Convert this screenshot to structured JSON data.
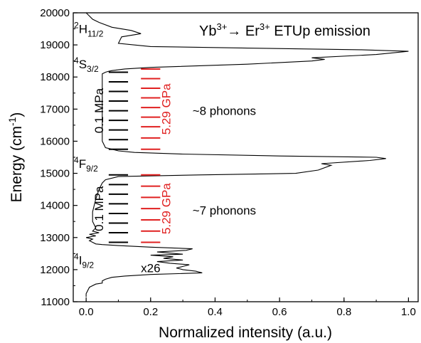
{
  "chart_data": {
    "type": "line",
    "title": "Yb³⁺→ Er³⁺ ETUp emission",
    "title_parts": {
      "yb": "Yb",
      "yb_sup": "3+",
      "arrow": "→ Er",
      "er_sup": "3+",
      "rest": " ETUp emission"
    },
    "xlabel": "Normalized intensity (a.u.)",
    "ylabel": "Energy (cm⁻¹)",
    "ylabel_parts": {
      "main": "Energy (cm",
      "sup": "-1",
      "close": ")"
    },
    "xlim": [
      -0.04,
      1.03
    ],
    "ylim": [
      11000,
      20000
    ],
    "x_ticks": [
      0.0,
      0.2,
      0.4,
      0.6,
      0.8,
      1.0
    ],
    "x_tick_labels": [
      "0.0",
      "0.2",
      "0.4",
      "0.6",
      "0.8",
      "1.0"
    ],
    "y_ticks": [
      11000,
      12000,
      13000,
      14000,
      15000,
      16000,
      17000,
      18000,
      19000,
      20000
    ],
    "y_tick_labels": [
      "11000",
      "12000",
      "13000",
      "14000",
      "15000",
      "16000",
      "17000",
      "18000",
      "19000",
      "20000"
    ],
    "grid": false,
    "series": [
      {
        "color": "#000000",
        "x": [
          0.0,
          0.0,
          0.01,
          0.03,
          0.05,
          0.05,
          0.06,
          0.08,
          0.12,
          0.2,
          0.3,
          0.36,
          0.34,
          0.3,
          0.28,
          0.3,
          0.32,
          0.26,
          0.22,
          0.3,
          0.24,
          0.27,
          0.2,
          0.3,
          0.22,
          0.31,
          0.33,
          0.2,
          0.1,
          0.05,
          0.03,
          0.02,
          0.01,
          0.02,
          0.0,
          0.03,
          0.01,
          0.04,
          0.02,
          0.03,
          0.02,
          0.02,
          0.03,
          0.04,
          0.05,
          0.06,
          0.1,
          0.35,
          0.65,
          0.72,
          0.76,
          0.73,
          0.88,
          0.93,
          0.9,
          0.6,
          0.3,
          0.15,
          0.1,
          0.08,
          0.06,
          0.05,
          0.05,
          0.05,
          0.05,
          0.05,
          0.05,
          0.05,
          0.05,
          0.06,
          0.07,
          0.08,
          0.12,
          0.2,
          0.5,
          0.7,
          0.74,
          0.7,
          0.9,
          1.0,
          0.85,
          0.5,
          0.2,
          0.1,
          0.11,
          0.17,
          0.14,
          0.08,
          0.04,
          0.02,
          0.01,
          0.0,
          0.0
        ],
        "y": [
          11150,
          11250,
          11450,
          11550,
          11580,
          11650,
          11700,
          11760,
          11800,
          11850,
          11880,
          11900,
          11950,
          12000,
          12050,
          12100,
          12150,
          12200,
          12250,
          12300,
          12350,
          12400,
          12450,
          12480,
          12550,
          12600,
          12650,
          12700,
          12750,
          12780,
          12800,
          12850,
          12900,
          12950,
          13000,
          13050,
          13100,
          13150,
          13200,
          13300,
          13500,
          13800,
          14200,
          14500,
          14700,
          14800,
          14900,
          14950,
          15000,
          15100,
          15250,
          15300,
          15400,
          15460,
          15500,
          15540,
          15600,
          15650,
          15700,
          15750,
          15800,
          16000,
          16500,
          17000,
          17500,
          17800,
          18000,
          18050,
          18100,
          18150,
          18180,
          18200,
          18250,
          18300,
          18400,
          18500,
          18550,
          18600,
          18700,
          18800,
          18850,
          18900,
          18950,
          19050,
          19250,
          19350,
          19450,
          19550,
          19700,
          19800,
          19900,
          20000,
          20100
        ]
      }
    ],
    "level_labels": [
      {
        "term": "H",
        "pre": "2",
        "sub": "11/2",
        "energy": 19500
      },
      {
        "term": "S",
        "pre": "4",
        "sub": "3/2",
        "energy": 18400
      },
      {
        "term": "F",
        "pre": "4",
        "sub": "9/2",
        "energy": 15300
      },
      {
        "term": "I",
        "pre": "4",
        "sub": "9/2",
        "energy": 12300
      }
    ],
    "phonon_ladders": [
      {
        "color": "#000000",
        "label": "0.1 MPa",
        "x_range": [
          0.07,
          0.13
        ],
        "energies": [
          18150,
          17850,
          17550,
          17250,
          16950,
          16650,
          16350,
          16050,
          15750
        ]
      },
      {
        "color": "#e02020",
        "label": "5.29 GPa",
        "x_range": [
          0.17,
          0.23
        ],
        "energies": [
          18250,
          17950,
          17650,
          17350,
          17050,
          16750,
          16450,
          16100,
          15750
        ]
      },
      {
        "color": "#000000",
        "label": "0.1 MPa",
        "x_range": [
          0.07,
          0.13
        ],
        "energies": [
          14950,
          14650,
          14350,
          14050,
          13750,
          13450,
          13150,
          12850
        ]
      },
      {
        "color": "#e02020",
        "label": "5.29 GPa",
        "x_range": [
          0.17,
          0.23
        ],
        "energies": [
          14950,
          14600,
          14250,
          13900,
          13550,
          13200,
          12850
        ]
      }
    ],
    "annotations": [
      {
        "text": "~8 phonons",
        "x": 0.33,
        "y": 16950
      },
      {
        "text": "~7 phonons",
        "x": 0.33,
        "y": 13850
      },
      {
        "text": "x26",
        "x": 0.17,
        "y": 12050
      }
    ]
  }
}
